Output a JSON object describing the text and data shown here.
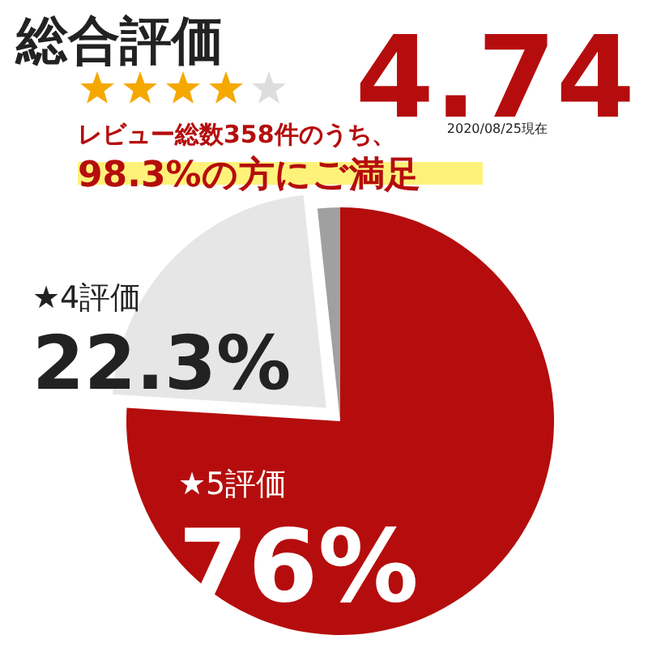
{
  "chart_data": {
    "type": "pie",
    "title": "総合評価",
    "subtitle": "4.74",
    "annotations": [
      "2020/08/25現在",
      "レビュー総数358件のうち、",
      "98.3%の方にご満足"
    ],
    "categories": [
      "★5評価",
      "★4評価",
      null
    ],
    "values": [
      76,
      22.3,
      1.7
    ],
    "colors": [
      "#b50d0d",
      "#e6e6e6",
      "#a0a0a0"
    ],
    "value_labels": [
      "76%",
      "22.3%",
      null
    ]
  }
}
